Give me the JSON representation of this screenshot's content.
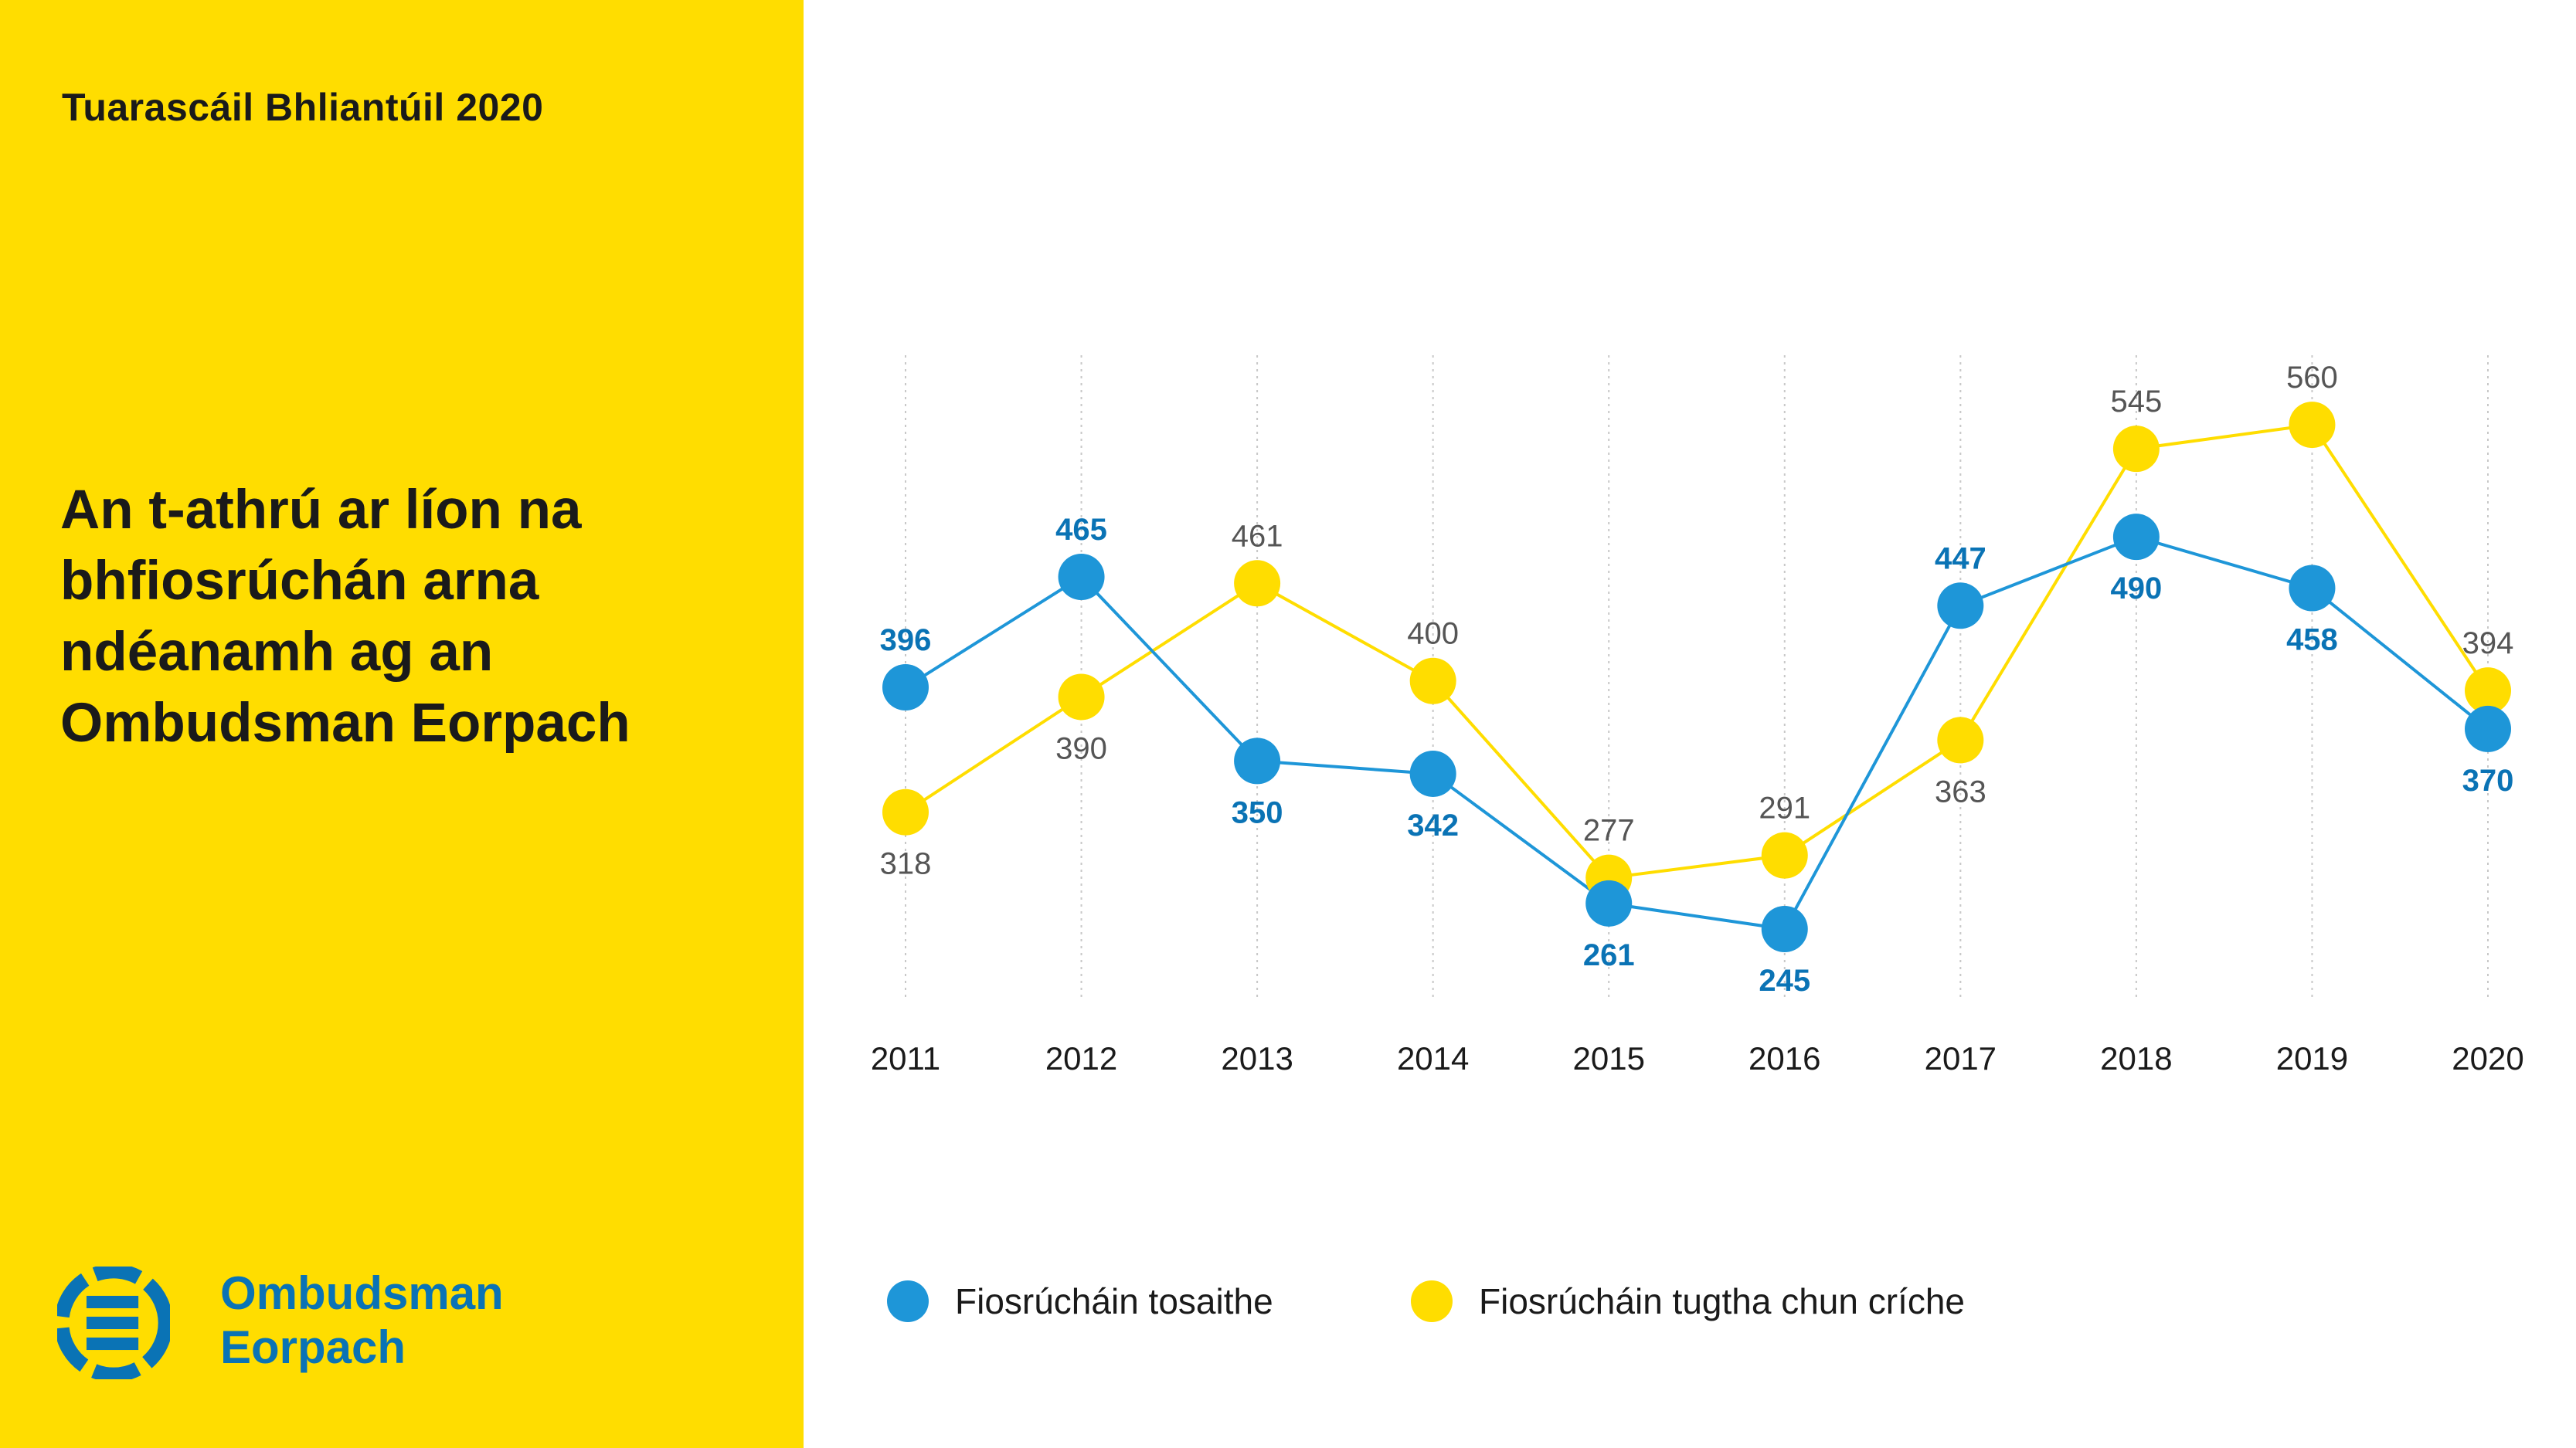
{
  "report_label": "Tuarascáil Bhliantúil 2020",
  "title_lines": [
    "An t-athrú ar líon na",
    "bhfiosrúchán arna",
    "ndéanamh ag an",
    "Ombudsman Eorpach"
  ],
  "logo": {
    "line1": "Ombudsman",
    "line2": "Eorpach"
  },
  "colors": {
    "panel": "#FFDD00",
    "blue": "#1E96D8",
    "blue_label": "#0A73B5",
    "yellow": "#FFDD00",
    "yellow_label": "#555555",
    "text": "#1a1a1a"
  },
  "chart_data": {
    "type": "line",
    "title": "An t-athrú ar líon na bhfiosrúchán arna ndéanamh ag an Ombudsman Eorpach",
    "categories": [
      "2011",
      "2012",
      "2013",
      "2014",
      "2015",
      "2016",
      "2017",
      "2018",
      "2019",
      "2020"
    ],
    "series": [
      {
        "name": "Fiosrúcháin tosaithe",
        "color": "#1E96D8",
        "values": [
          396,
          465,
          350,
          342,
          261,
          245,
          447,
          490,
          458,
          370
        ]
      },
      {
        "name": "Fiosrúcháin tugtha chun críche",
        "color": "#FFDD00",
        "values": [
          318,
          390,
          461,
          400,
          277,
          291,
          363,
          545,
          560,
          394
        ]
      }
    ],
    "ylim": [
      160,
      600
    ],
    "grid": "vertical dotted",
    "legend_position": "bottom"
  }
}
